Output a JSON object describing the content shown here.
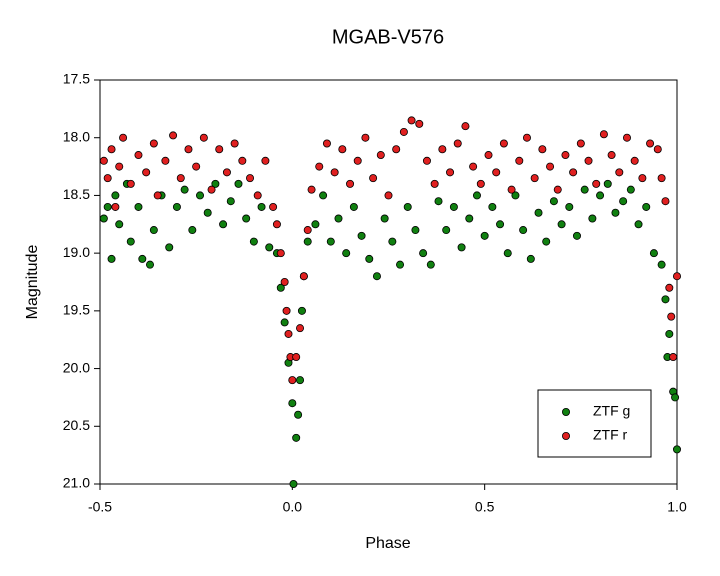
{
  "chart_data": {
    "type": "scatter",
    "title": "MGAB-V576",
    "x_label": "Phase",
    "y_label": "Magnitude",
    "xlim": [
      -0.5,
      1.0
    ],
    "xticks": [
      -0.5,
      {
        "value": 0.0,
        "label": "0.0"
      },
      0.5,
      {
        "value": 1.0,
        "label": "1.0"
      }
    ],
    "ylim": [
      17.5,
      21.0
    ],
    "y_reversed": true,
    "yticks": [
      17.5,
      {
        "value": 18.0,
        "label": "18.0"
      },
      18.5,
      {
        "value": 19.0,
        "label": "19.0"
      },
      19.5,
      {
        "value": 20.0,
        "label": "20.0"
      },
      20.5,
      {
        "value": 21.0,
        "label": "21.0"
      }
    ],
    "grid": false,
    "legend": "lower right",
    "series": [
      {
        "name": "ZTF g",
        "color": "#108010",
        "x": [
          -0.49,
          -0.48,
          -0.47,
          -0.46,
          -0.45,
          -0.43,
          -0.42,
          -0.4,
          -0.39,
          -0.37,
          -0.36,
          -0.34,
          -0.32,
          -0.3,
          -0.28,
          -0.26,
          -0.24,
          -0.22,
          -0.2,
          -0.18,
          -0.16,
          -0.14,
          -0.12,
          -0.1,
          -0.08,
          -0.06,
          -0.04,
          -0.03,
          -0.02,
          -0.01,
          0.0,
          0.003,
          0.01,
          0.015,
          0.02,
          0.025,
          0.03,
          0.04,
          0.06,
          0.08,
          0.1,
          0.12,
          0.14,
          0.16,
          0.18,
          0.2,
          0.22,
          0.24,
          0.26,
          0.28,
          0.3,
          0.32,
          0.34,
          0.36,
          0.38,
          0.4,
          0.42,
          0.44,
          0.46,
          0.48,
          0.5,
          0.52,
          0.54,
          0.56,
          0.58,
          0.6,
          0.62,
          0.64,
          0.66,
          0.68,
          0.7,
          0.72,
          0.74,
          0.76,
          0.78,
          0.8,
          0.82,
          0.84,
          0.86,
          0.88,
          0.9,
          0.92,
          0.94,
          0.96,
          0.97,
          0.975,
          0.98,
          0.99,
          0.995,
          1.0
        ],
        "values": [
          18.7,
          18.6,
          19.05,
          18.5,
          18.75,
          18.4,
          18.9,
          18.6,
          19.05,
          19.1,
          18.8,
          18.5,
          18.95,
          18.6,
          18.45,
          18.8,
          18.5,
          18.65,
          18.4,
          18.75,
          18.55,
          18.4,
          18.7,
          18.9,
          18.6,
          18.95,
          19.0,
          19.3,
          19.6,
          19.95,
          20.3,
          21.0,
          20.6,
          20.4,
          20.1,
          19.5,
          19.2,
          18.9,
          18.75,
          18.5,
          18.9,
          18.7,
          19.0,
          18.6,
          18.85,
          19.05,
          19.2,
          18.7,
          18.9,
          19.1,
          18.6,
          18.8,
          19.0,
          19.1,
          18.55,
          18.8,
          18.6,
          18.95,
          18.7,
          18.5,
          18.85,
          18.6,
          18.75,
          19.0,
          18.5,
          18.8,
          19.05,
          18.65,
          18.9,
          18.55,
          18.75,
          18.6,
          18.85,
          18.45,
          18.7,
          18.5,
          18.4,
          18.65,
          18.55,
          18.45,
          18.75,
          18.6,
          19.0,
          19.1,
          19.4,
          19.9,
          19.7,
          20.2,
          20.25,
          20.7
        ]
      },
      {
        "name": "ZTF r",
        "color": "#e02020",
        "x": [
          -0.49,
          -0.48,
          -0.47,
          -0.46,
          -0.45,
          -0.44,
          -0.42,
          -0.4,
          -0.38,
          -0.36,
          -0.35,
          -0.33,
          -0.31,
          -0.29,
          -0.27,
          -0.25,
          -0.23,
          -0.21,
          -0.19,
          -0.17,
          -0.15,
          -0.13,
          -0.11,
          -0.09,
          -0.07,
          -0.05,
          -0.04,
          -0.03,
          -0.02,
          -0.015,
          -0.01,
          -0.005,
          0.0,
          0.01,
          0.02,
          0.03,
          0.04,
          0.05,
          0.07,
          0.09,
          0.11,
          0.13,
          0.15,
          0.17,
          0.19,
          0.21,
          0.23,
          0.25,
          0.27,
          0.29,
          0.31,
          0.33,
          0.35,
          0.37,
          0.39,
          0.41,
          0.43,
          0.45,
          0.47,
          0.49,
          0.51,
          0.53,
          0.55,
          0.57,
          0.59,
          0.61,
          0.63,
          0.65,
          0.67,
          0.69,
          0.71,
          0.73,
          0.75,
          0.77,
          0.79,
          0.81,
          0.83,
          0.85,
          0.87,
          0.89,
          0.91,
          0.93,
          0.95,
          0.96,
          0.97,
          0.98,
          0.985,
          0.99,
          1.0
        ],
        "values": [
          18.2,
          18.35,
          18.1,
          18.6,
          18.25,
          18.0,
          18.4,
          18.15,
          18.3,
          18.05,
          18.5,
          18.2,
          17.98,
          18.35,
          18.1,
          18.25,
          18.0,
          18.45,
          18.1,
          18.3,
          18.05,
          18.2,
          18.35,
          18.5,
          18.2,
          18.6,
          18.75,
          19.0,
          19.25,
          19.5,
          19.7,
          19.9,
          20.1,
          19.9,
          19.65,
          19.2,
          18.8,
          18.45,
          18.25,
          18.05,
          18.3,
          18.1,
          18.4,
          18.2,
          18.0,
          18.35,
          18.15,
          18.5,
          18.1,
          17.95,
          17.85,
          17.88,
          18.2,
          18.4,
          18.1,
          18.3,
          18.05,
          17.9,
          18.25,
          18.4,
          18.15,
          18.3,
          18.05,
          18.45,
          18.2,
          18.0,
          18.35,
          18.1,
          18.25,
          18.45,
          18.15,
          18.3,
          18.05,
          18.2,
          18.4,
          17.97,
          18.15,
          18.3,
          18.0,
          18.2,
          18.35,
          18.05,
          18.1,
          18.35,
          18.55,
          19.3,
          19.55,
          19.9,
          19.2
        ]
      }
    ]
  }
}
